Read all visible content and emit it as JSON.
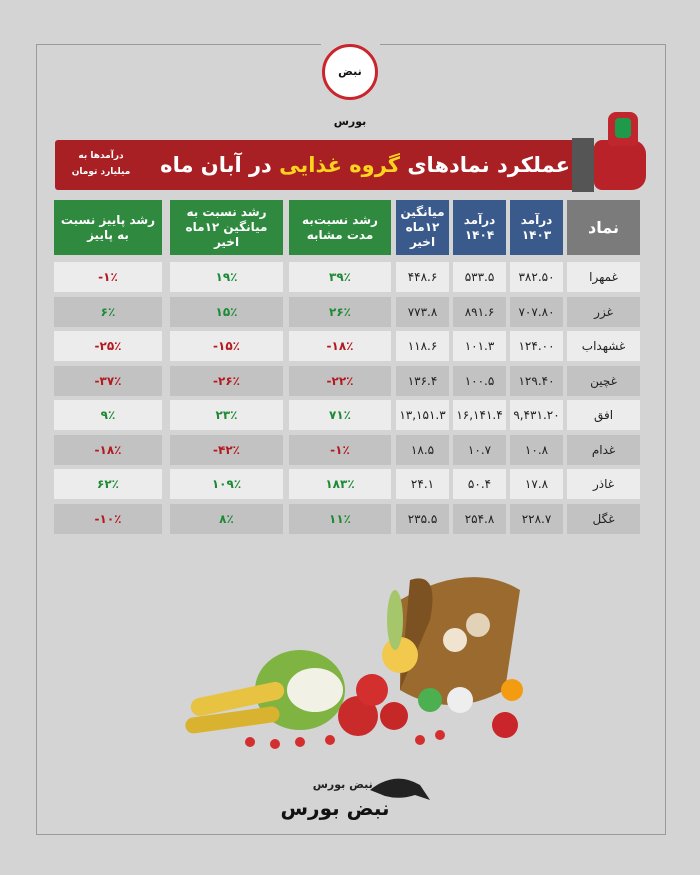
{
  "logo": "نبض بورس",
  "header": {
    "title_start": "عملکرد نمادهای",
    "title_highlight": "گروه غذایی",
    "title_end": "در آبان ماه",
    "note_line1": "درآمدها به",
    "note_line2": "میلیارد تومان"
  },
  "table": {
    "columns": [
      "نماد",
      "درآمد ۱۴۰۳",
      "درآمد ۱۴۰۴",
      "میانگین ۱۲ماه اخیر",
      "رشد نسبت‌به مدت مشابه",
      "رشد نسبت به میانگین ۱۲ماه اخیر",
      "رشد پاییز نسبت به پاییز"
    ],
    "rows": [
      [
        "غمهرا",
        "۳۸۲.۵۰",
        "۵۳۳.۵",
        "۴۴۸.۶",
        "۳۹٪",
        "۱۹٪",
        "-۱٪"
      ],
      [
        "غزر",
        "۷۰۷.۸۰",
        "۸۹۱.۶",
        "۷۷۳.۸",
        "۲۶٪",
        "۱۵٪",
        "۶٪"
      ],
      [
        "غشهداب",
        "۱۲۴.۰۰",
        "۱۰۱.۳",
        "۱۱۸.۶",
        "-۱۸٪",
        "-۱۵٪",
        "-۲۵٪"
      ],
      [
        "غچین",
        "۱۲۹.۴۰",
        "۱۰۰.۵",
        "۱۳۶.۴",
        "-۲۲٪",
        "-۲۶٪",
        "-۳۷٪"
      ],
      [
        "افق",
        "۹,۴۳۱.۲۰",
        "۱۶,۱۴۱.۴",
        "۱۳,۱۵۱.۳",
        "۷۱٪",
        "۲۳٪",
        "۹٪"
      ],
      [
        "غدام",
        "۱۰.۸",
        "۱۰.۷",
        "۱۸.۵",
        "-۱٪",
        "-۴۲٪",
        "-۱۸٪"
      ],
      [
        "غاذر",
        "۱۷.۸",
        "۵۰.۴",
        "۲۴.۱",
        "۱۸۳٪",
        "۱۰۹٪",
        "۶۲٪"
      ],
      [
        "غگل",
        "۲۲۸.۷",
        "۲۵۴.۸",
        "۲۳۵.۵",
        "۱۱٪",
        "۸٪",
        "-۱۰٪"
      ]
    ]
  },
  "footer": {
    "site": "سایت نبض بورس",
    "brand": "نبض بورس"
  }
}
